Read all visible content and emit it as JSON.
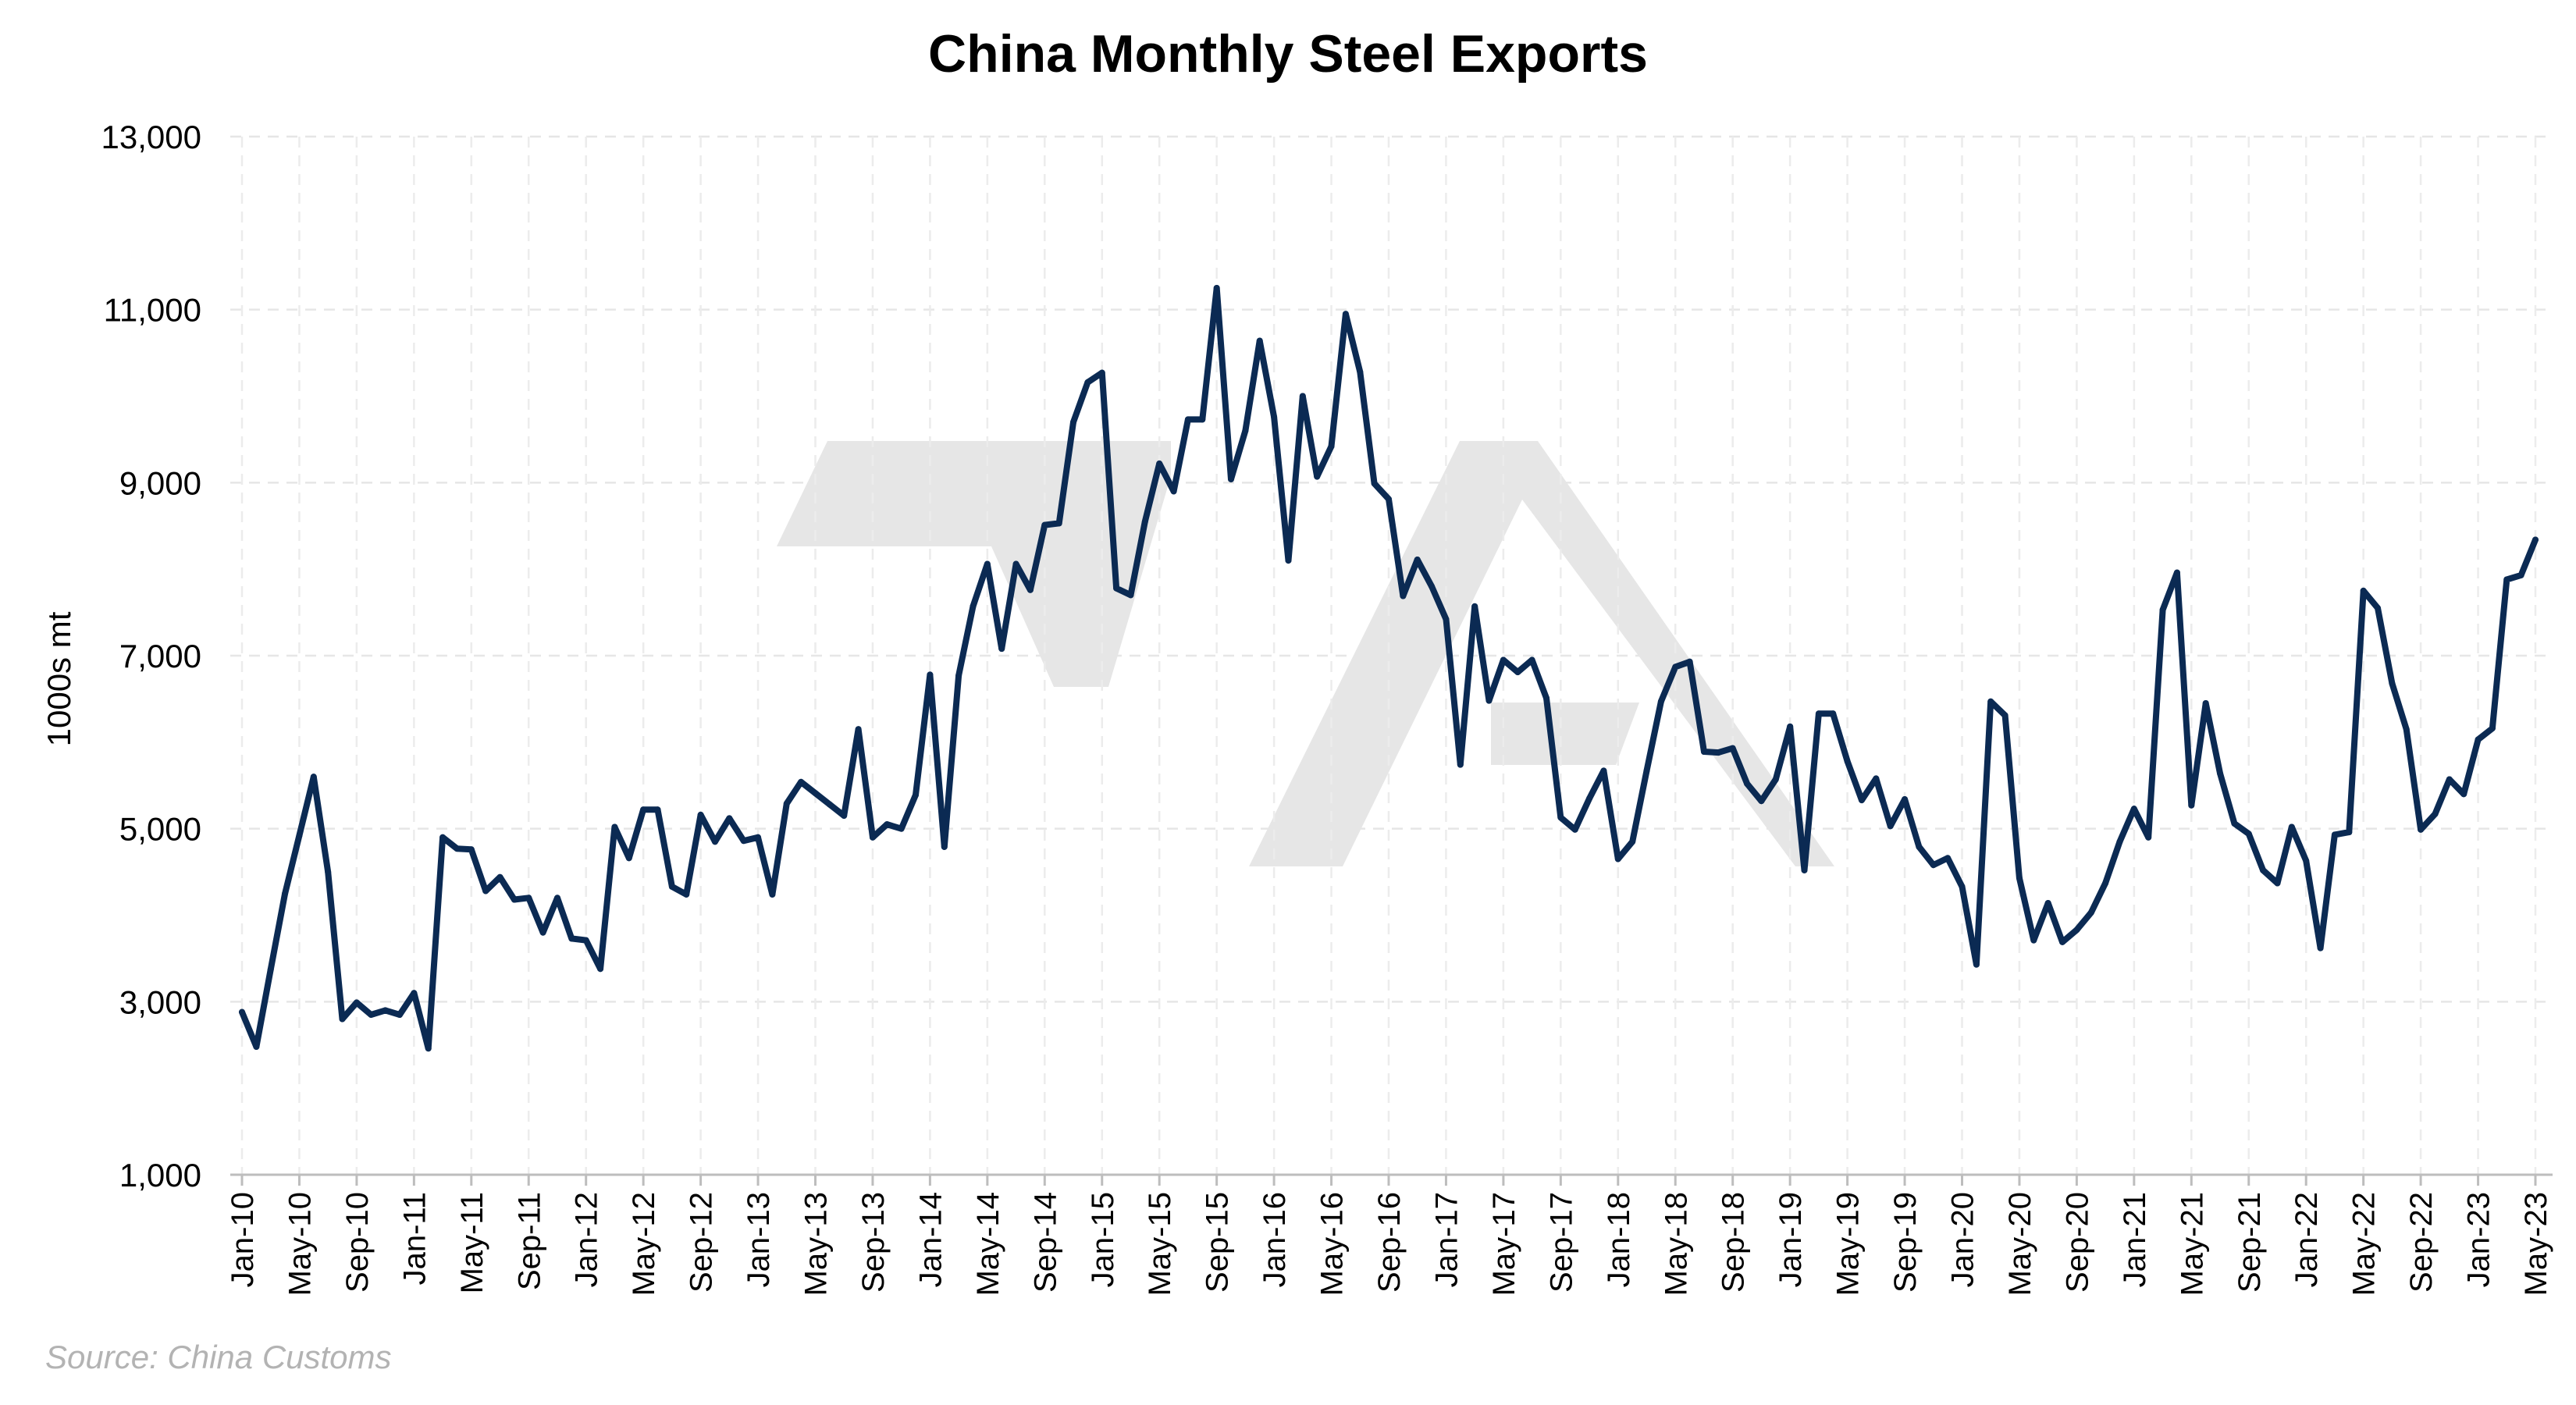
{
  "chart_data": {
    "type": "line",
    "title": "China Monthly Steel Exports",
    "xlabel": "",
    "ylabel": "1000s mt",
    "ylim": [
      1000,
      13000
    ],
    "yticks": [
      1000,
      3000,
      5000,
      7000,
      9000,
      11000,
      13000
    ],
    "ytick_labels": [
      "1,000",
      "3,000",
      "5,000",
      "7,000",
      "9,000",
      "11,000",
      "13,000"
    ],
    "x_start": "Jan-10",
    "x_end": "May-23",
    "xtick_labels": [
      "Jan-10",
      "May-10",
      "Sep-10",
      "Jan-11",
      "May-11",
      "Sep-11",
      "Jan-12",
      "May-12",
      "Sep-12",
      "Jan-13",
      "May-13",
      "Sep-13",
      "Jan-14",
      "May-14",
      "Sep-14",
      "Jan-15",
      "May-15",
      "Sep-15",
      "Jan-16",
      "May-16",
      "Sep-16",
      "Jan-17",
      "May-17",
      "Sep-17",
      "Jan-18",
      "May-18",
      "Sep-18",
      "Jan-19",
      "May-19",
      "Sep-19",
      "Jan-20",
      "May-20",
      "Sep-20",
      "Jan-21",
      "May-21",
      "Sep-21",
      "Jan-22",
      "May-22",
      "Sep-22",
      "Jan-23",
      "May-23"
    ],
    "grid": true,
    "legend": "none",
    "line_color": "#0b2a53",
    "series": [
      {
        "values": [
          2880,
          2480,
          3370,
          4250,
          4920,
          5600,
          4500,
          2800,
          2990,
          2850,
          2900,
          2850,
          3100,
          2460,
          4900,
          4770,
          4760,
          4280,
          4440,
          4180,
          4200,
          3800,
          4200,
          3730,
          3710,
          3380,
          5020,
          4660,
          5220,
          5220,
          4330,
          4240,
          5160,
          4850,
          5120,
          4860,
          4900,
          4240,
          5290,
          5540,
          5410,
          5280,
          5150,
          6150,
          4900,
          5050,
          5000,
          5390,
          6780,
          4790,
          6770,
          7570,
          8060,
          7080,
          8060,
          7760,
          8510,
          8530,
          9700,
          10160,
          10270,
          7780,
          7700,
          8550,
          9220,
          8900,
          9730,
          9730,
          11250,
          9040,
          9600,
          10640,
          9760,
          8100,
          10000,
          9070,
          9420,
          10950,
          10280,
          8990,
          8810,
          7690,
          8110,
          7800,
          7420,
          5740,
          7570,
          6480,
          6950,
          6810,
          6950,
          6510,
          5130,
          4990,
          5350,
          5670,
          4650,
          4850,
          5670,
          6470,
          6870,
          6930,
          5890,
          5880,
          5930,
          5520,
          5320,
          5570,
          6180,
          4520,
          6330,
          6330,
          5780,
          5330,
          5580,
          5030,
          5340,
          4790,
          4580,
          4660,
          4330,
          3430,
          6470,
          6310,
          4430,
          3710,
          4140,
          3690,
          3830,
          4030,
          4370,
          4850,
          5230,
          4900,
          7530,
          7960,
          5270,
          6450,
          5640,
          5060,
          4940,
          4520,
          4370,
          5020,
          4630,
          3620,
          4930,
          4960,
          7750,
          7550,
          6680,
          6150,
          4990,
          5170,
          5570,
          5400,
          6030,
          6160,
          7880,
          7930,
          8340
        ]
      }
    ]
  },
  "source_text": "Source: China Customs",
  "watermark": "logo-watermark"
}
